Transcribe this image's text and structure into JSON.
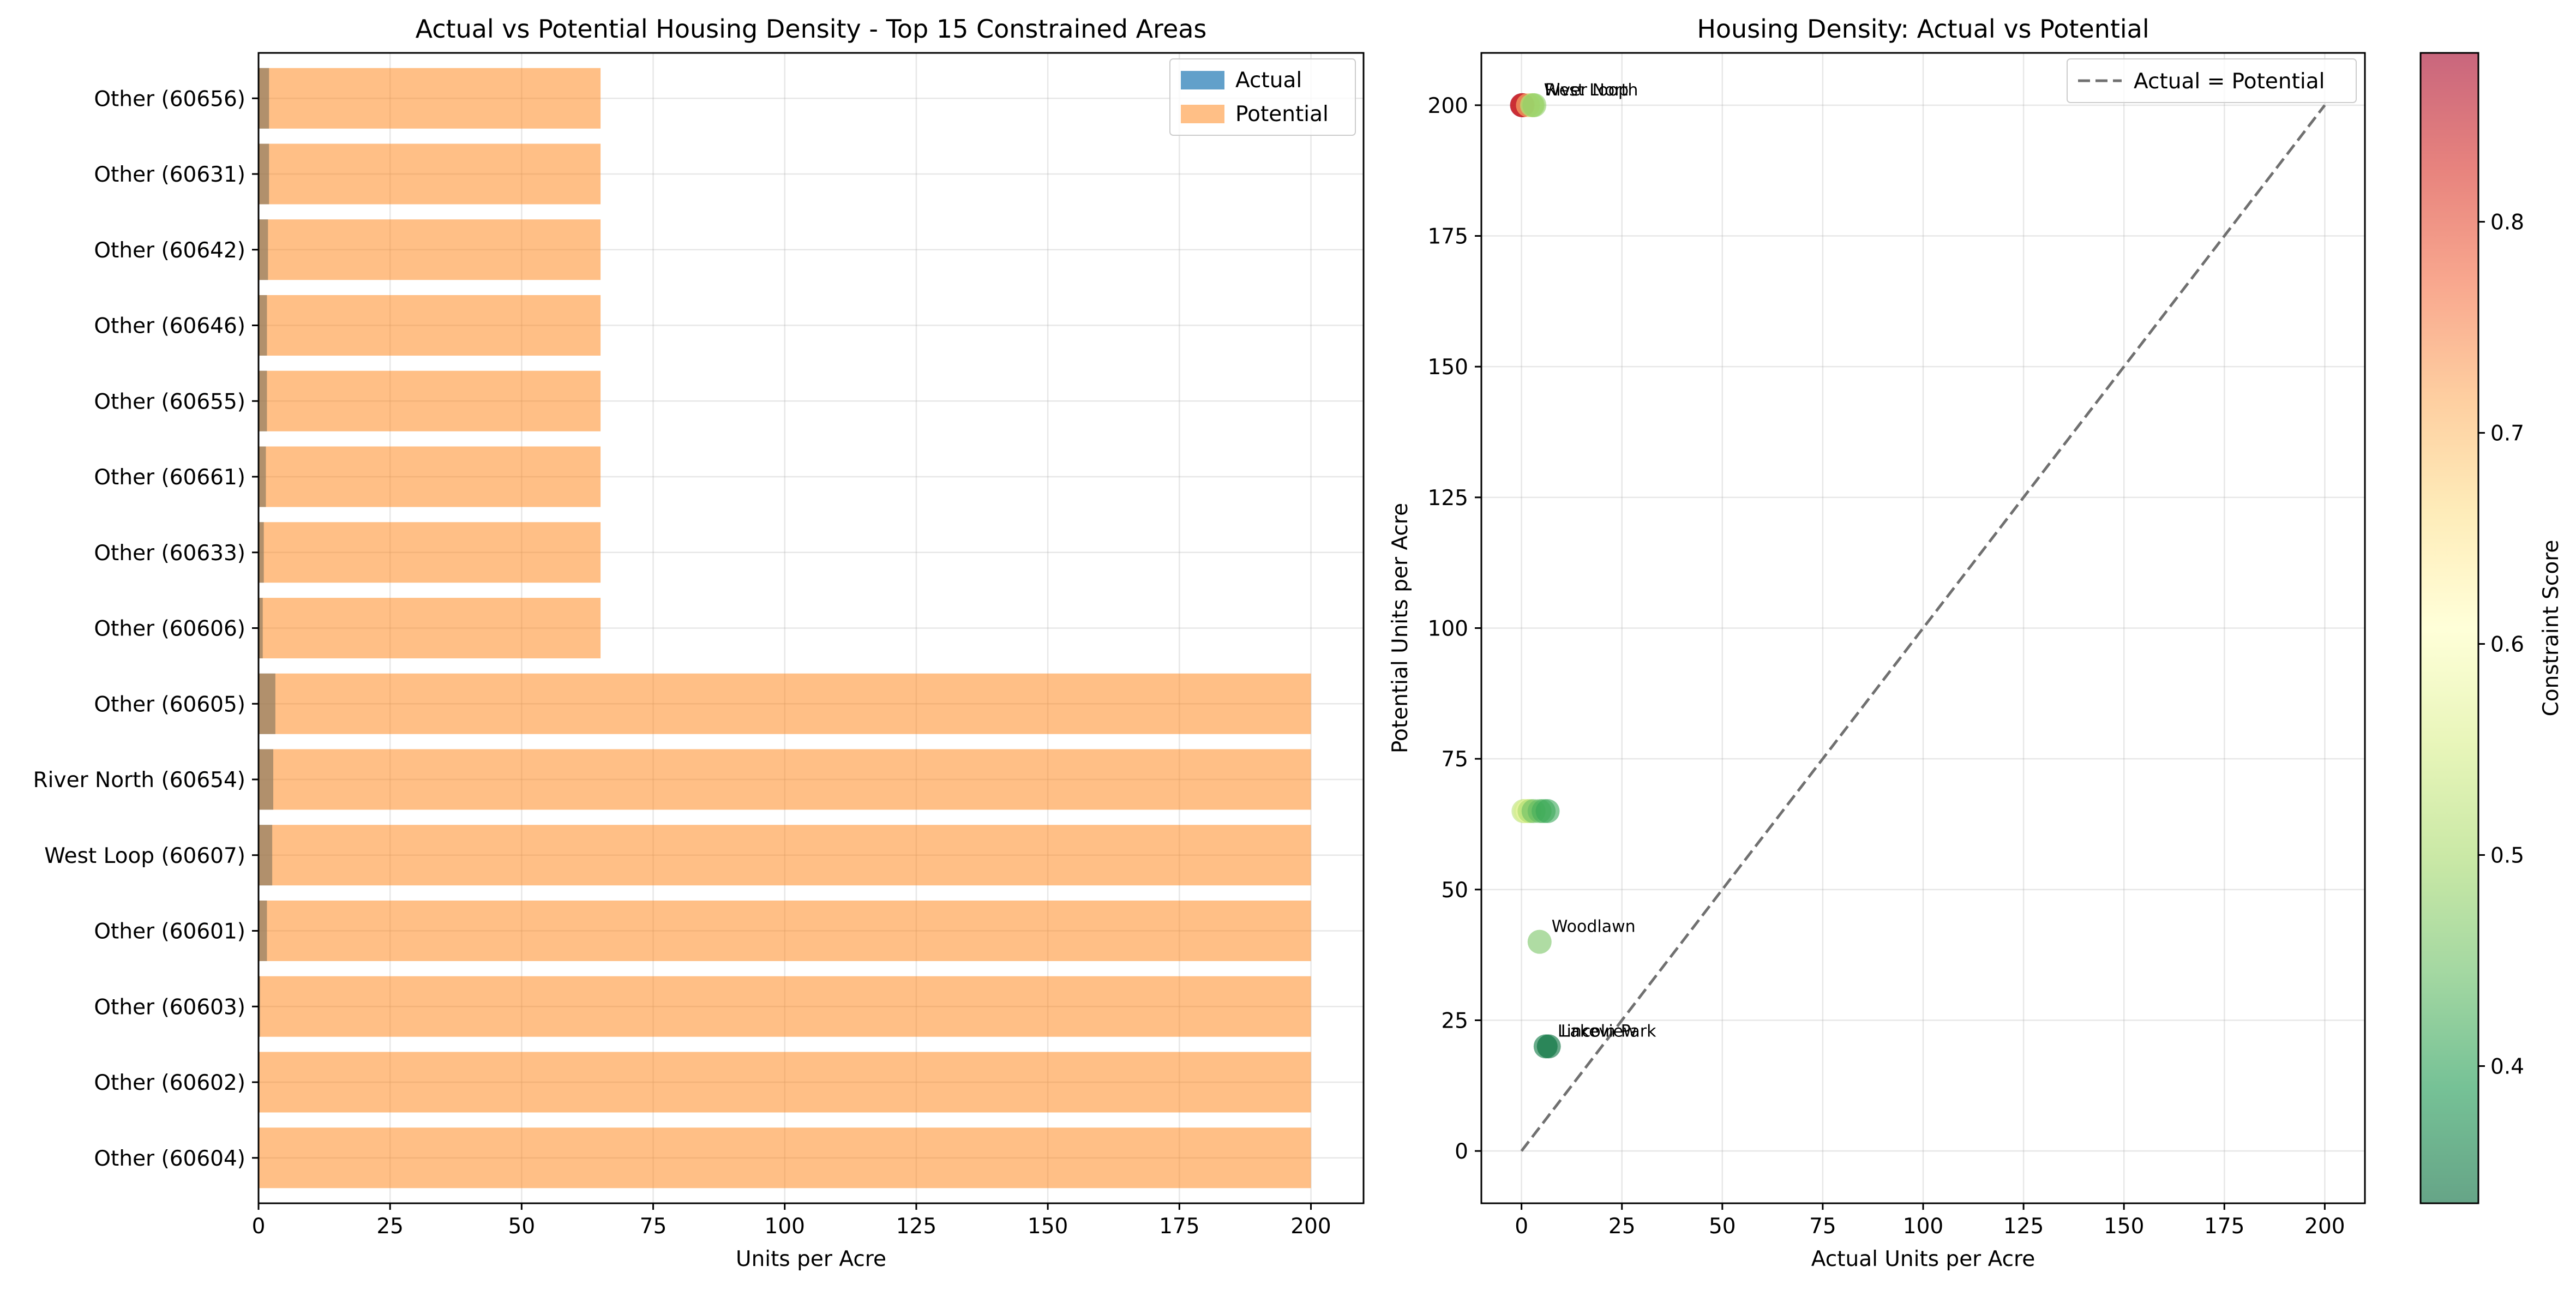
{
  "chart_data": [
    {
      "type": "bar",
      "orientation": "horizontal",
      "title": "Actual vs Potential Housing Density - Top 15 Constrained Areas",
      "xlabel": "Units per Acre",
      "ylabel": "",
      "xlim": [
        0,
        210
      ],
      "xticks": [
        0,
        25,
        50,
        75,
        100,
        125,
        150,
        175,
        200
      ],
      "grid": true,
      "legend_position": "top-right",
      "categories": [
        "Other (60656)",
        "Other (60631)",
        "Other (60642)",
        "Other (60646)",
        "Other (60655)",
        "Other (60661)",
        "Other (60633)",
        "Other (60606)",
        "Other (60605)",
        "River North (60654)",
        "West Loop (60607)",
        "Other (60601)",
        "Other (60603)",
        "Other (60602)",
        "Other (60604)"
      ],
      "series": [
        {
          "name": "Actual",
          "color": "#1f77b4",
          "values": [
            2.0,
            2.0,
            1.8,
            1.6,
            1.6,
            1.4,
            1.0,
            0.8,
            3.2,
            2.8,
            2.6,
            1.6,
            0.3,
            0.2,
            0.1
          ]
        },
        {
          "name": "Potential",
          "color": "#ff7f0e",
          "values": [
            65,
            65,
            65,
            65,
            65,
            65,
            65,
            65,
            200,
            200,
            200,
            200,
            200,
            200,
            200
          ]
        }
      ]
    },
    {
      "type": "scatter",
      "title": "Housing Density: Actual vs Potential",
      "xlabel": "Actual Units per Acre",
      "ylabel": "Potential Units per Acre",
      "xlim": [
        -10,
        210
      ],
      "ylim": [
        -10,
        210
      ],
      "xticks": [
        0,
        25,
        50,
        75,
        100,
        125,
        150,
        175,
        200
      ],
      "yticks": [
        0,
        25,
        50,
        75,
        100,
        125,
        150,
        175,
        200
      ],
      "grid": true,
      "legend_position": "top-right",
      "reference_line": {
        "label": "Actual = Potential",
        "x": [
          0,
          200
        ],
        "y": [
          0,
          200
        ],
        "color": "#707070"
      },
      "colorbar": {
        "label": "Constraint Score",
        "range": [
          0.335,
          0.88
        ],
        "ticks": [
          0.4,
          0.5,
          0.6,
          0.7,
          0.8
        ]
      },
      "points": [
        {
          "x": 0.1,
          "y": 200,
          "score": 0.88
        },
        {
          "x": 0.2,
          "y": 200,
          "score": 0.86
        },
        {
          "x": 0.3,
          "y": 200,
          "score": 0.83
        },
        {
          "x": 1.6,
          "y": 200,
          "score": 0.7
        },
        {
          "x": 2.6,
          "y": 200,
          "score": 0.52
        },
        {
          "x": 2.8,
          "y": 200,
          "score": 0.5
        },
        {
          "x": 3.2,
          "y": 200,
          "score": 0.48
        },
        {
          "x": 0.5,
          "y": 65,
          "score": 0.52
        },
        {
          "x": 1.0,
          "y": 65,
          "score": 0.55
        },
        {
          "x": 1.6,
          "y": 65,
          "score": 0.58
        },
        {
          "x": 2.0,
          "y": 65,
          "score": 0.5
        },
        {
          "x": 3.0,
          "y": 65,
          "score": 0.45
        },
        {
          "x": 4.5,
          "y": 65,
          "score": 0.44
        },
        {
          "x": 5.5,
          "y": 65,
          "score": 0.42
        },
        {
          "x": 6.5,
          "y": 65,
          "score": 0.41
        },
        {
          "x": 4.5,
          "y": 40,
          "score": 0.46
        },
        {
          "x": 6.0,
          "y": 20,
          "score": 0.35
        },
        {
          "x": 6.8,
          "y": 20,
          "score": 0.34
        }
      ],
      "annotations": [
        {
          "text": "River North",
          "x": 2.8,
          "y": 200
        },
        {
          "text": "West Loop",
          "x": 2.6,
          "y": 200
        },
        {
          "text": "Woodlawn",
          "x": 4.5,
          "y": 40
        },
        {
          "text": "Lincoln Park",
          "x": 6.0,
          "y": 20
        },
        {
          "text": "Lakeview",
          "x": 6.8,
          "y": 20
        }
      ]
    }
  ]
}
